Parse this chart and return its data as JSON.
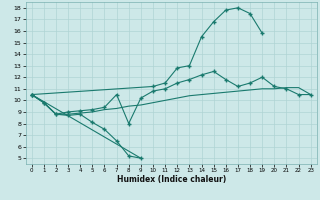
{
  "title": "",
  "xlabel": "Humidex (Indice chaleur)",
  "bg_color": "#cde8e8",
  "grid_color": "#b0d4d4",
  "line_color": "#1a7a6e",
  "xlim": [
    -0.5,
    23.5
  ],
  "ylim": [
    4.5,
    18.5
  ],
  "xticks": [
    0,
    1,
    2,
    3,
    4,
    5,
    6,
    7,
    8,
    9,
    10,
    11,
    12,
    13,
    14,
    15,
    16,
    17,
    18,
    19,
    20,
    21,
    22,
    23
  ],
  "yticks": [
    5,
    6,
    7,
    8,
    9,
    10,
    11,
    12,
    13,
    14,
    15,
    16,
    17,
    18
  ],
  "series1_y": [
    10.5,
    9.8,
    8.8,
    8.7,
    8.8,
    8.1,
    7.5,
    6.5,
    5.2,
    5.0,
    null,
    null,
    null,
    null,
    null,
    null,
    null,
    null,
    null,
    null,
    null,
    null,
    null,
    null
  ],
  "series2_y": [
    10.5,
    null,
    null,
    null,
    null,
    null,
    null,
    null,
    null,
    null,
    11.2,
    11.5,
    12.8,
    13.0,
    15.5,
    16.8,
    17.8,
    18.0,
    17.5,
    15.8,
    null,
    null,
    null,
    null
  ],
  "series3_y": [
    10.5,
    9.8,
    8.8,
    9.0,
    9.1,
    9.2,
    9.4,
    10.5,
    8.0,
    10.2,
    10.8,
    11.0,
    11.5,
    11.8,
    12.2,
    12.5,
    11.8,
    11.2,
    11.5,
    12.0,
    11.2,
    11.0,
    10.5,
    10.5
  ],
  "series4_y": [
    10.5,
    9.8,
    8.8,
    8.8,
    8.9,
    9.0,
    9.2,
    9.3,
    9.5,
    9.6,
    9.8,
    10.0,
    10.2,
    10.4,
    10.5,
    10.6,
    10.7,
    10.8,
    10.9,
    11.0,
    11.0,
    11.1,
    11.1,
    10.5
  ]
}
